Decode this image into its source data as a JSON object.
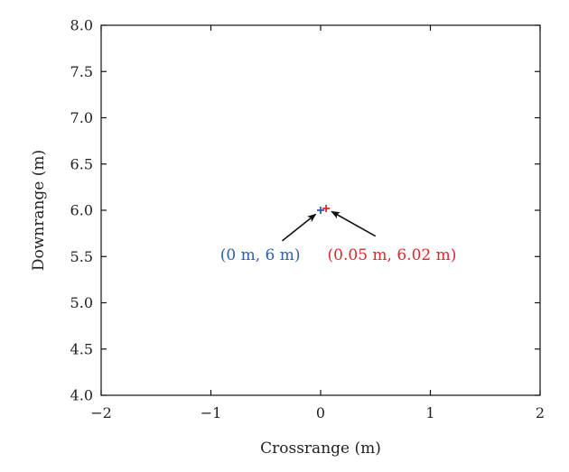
{
  "chart_data": {
    "type": "scatter",
    "title": "",
    "xlabel": "Crossrange (m)",
    "ylabel": "Downrange (m)",
    "xlim": [
      -2,
      2
    ],
    "ylim": [
      4.0,
      8.0
    ],
    "x_ticks": [
      -2,
      -1,
      0,
      1,
      2
    ],
    "x_tick_labels": [
      "−2",
      "−1",
      "0",
      "1",
      "2"
    ],
    "y_ticks": [
      4.0,
      4.5,
      5.0,
      5.5,
      6.0,
      6.5,
      7.0,
      7.5,
      8.0
    ],
    "y_tick_labels": [
      "4.0",
      "4.5",
      "5.0",
      "5.5",
      "6.0",
      "6.5",
      "7.0",
      "7.5",
      "8.0"
    ],
    "grid": false,
    "series": [
      {
        "marker": "plus",
        "color": "#2e5fa8",
        "points": [
          {
            "x": 0,
            "y": 6
          }
        ]
      },
      {
        "marker": "plus",
        "color": "#e0262e",
        "points": [
          {
            "x": 0.05,
            "y": 6.02
          }
        ]
      }
    ],
    "annotations": [
      {
        "text": "(0 m, 6 m)",
        "color": "#2e5fa8",
        "target": {
          "x": 0,
          "y": 6
        },
        "text_anchor": {
          "x": -0.55,
          "y": 5.52
        },
        "arrow_tail": {
          "x": -0.35,
          "y": 5.67
        }
      },
      {
        "text": "(0.05 m, 6.02 m)",
        "color": "#e0262e",
        "target": {
          "x": 0.05,
          "y": 6.02
        },
        "text_anchor": {
          "x": 0.65,
          "y": 5.52
        },
        "arrow_tail": {
          "x": 0.5,
          "y": 5.72
        }
      }
    ]
  }
}
